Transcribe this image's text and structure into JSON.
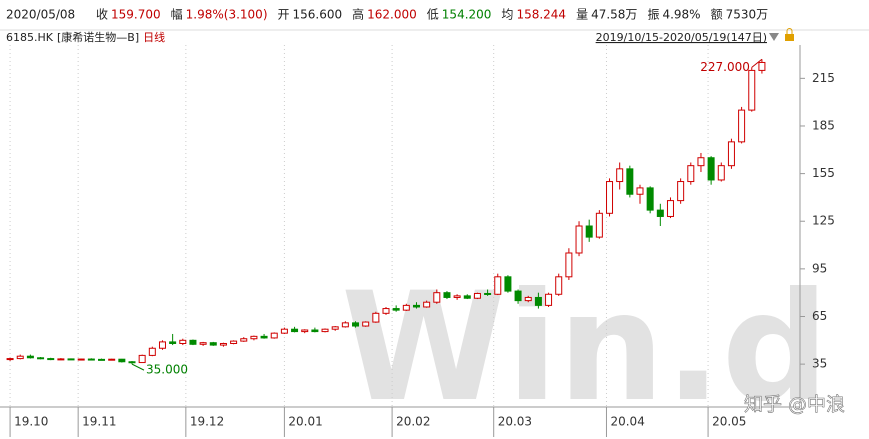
{
  "header": {
    "date": "2020/05/08",
    "items": [
      {
        "label": "收",
        "value": "159.700",
        "color": "#c00000"
      },
      {
        "label": "幅",
        "value": "1.98%(3.100)",
        "color": "#c00000"
      },
      {
        "label": "开",
        "value": "156.600",
        "color": "#222222"
      },
      {
        "label": "高",
        "value": "162.000",
        "color": "#c00000"
      },
      {
        "label": "低",
        "value": "154.200",
        "color": "#008000"
      },
      {
        "label": "均",
        "value": "158.244",
        "color": "#c00000"
      },
      {
        "label": "量",
        "value": "47.58万",
        "color": "#222222"
      },
      {
        "label": "振",
        "value": "4.98%",
        "color": "#222222"
      },
      {
        "label": "额",
        "value": "7530万",
        "color": "#222222"
      }
    ],
    "code": "6185.HK",
    "name": "[康希诺生物—B]",
    "period": "日线",
    "range": "2019/10/15-2020/05/19(147日)"
  },
  "chart_data": {
    "type": "candlestick",
    "up_color": "#d00000",
    "down_color": "#008a00",
    "ohlc": [
      [
        38,
        39,
        37,
        38.5
      ],
      [
        38.5,
        41,
        38,
        40
      ],
      [
        40,
        41,
        38.5,
        39
      ],
      [
        39,
        39.5,
        38,
        38.5
      ],
      [
        38.5,
        39,
        37.5,
        38
      ],
      [
        38,
        38.8,
        37.5,
        38.3
      ],
      [
        38.3,
        38.6,
        37.6,
        37.8
      ],
      [
        37.8,
        38.5,
        37.5,
        38.2
      ],
      [
        38.2,
        38.7,
        37.8,
        38
      ],
      [
        38,
        38.5,
        37.6,
        37.9
      ],
      [
        37.9,
        38.4,
        37.5,
        38.1
      ],
      [
        38.1,
        38.3,
        36,
        36.5
      ],
      [
        36.5,
        37,
        35,
        36
      ],
      [
        36,
        41,
        35.8,
        40.5
      ],
      [
        40.5,
        46,
        40,
        45
      ],
      [
        45,
        50,
        44,
        49
      ],
      [
        49,
        54,
        47,
        48
      ],
      [
        48,
        51,
        47,
        50
      ],
      [
        50,
        50.5,
        47,
        47.5
      ],
      [
        47.5,
        49,
        46.5,
        48.5
      ],
      [
        48.5,
        49,
        46.5,
        47
      ],
      [
        47,
        48.5,
        46,
        48
      ],
      [
        48,
        50,
        47.5,
        49.5
      ],
      [
        49.5,
        52,
        49,
        51
      ],
      [
        51,
        53,
        50,
        52.5
      ],
      [
        52.5,
        54,
        51,
        51.5
      ],
      [
        51.5,
        55,
        51,
        54.5
      ],
      [
        54.5,
        58,
        54,
        57
      ],
      [
        57,
        58.5,
        55,
        55.5
      ],
      [
        55.5,
        57,
        54.5,
        56.5
      ],
      [
        56.5,
        58,
        55,
        55.5
      ],
      [
        55.5,
        57.5,
        55,
        57
      ],
      [
        57,
        59,
        56,
        58.5
      ],
      [
        58.5,
        62,
        58,
        61
      ],
      [
        61,
        62,
        58,
        59
      ],
      [
        59,
        62,
        58.5,
        61.5
      ],
      [
        61.5,
        68,
        61,
        67
      ],
      [
        67,
        71,
        66,
        70
      ],
      [
        70,
        72,
        68,
        69
      ],
      [
        69,
        73,
        68.5,
        72
      ],
      [
        72,
        74,
        70,
        71
      ],
      [
        71,
        75,
        70.5,
        74
      ],
      [
        74,
        82,
        73,
        80
      ],
      [
        80,
        81,
        76,
        77
      ],
      [
        77,
        79,
        75.5,
        78
      ],
      [
        78,
        79,
        76,
        76.5
      ],
      [
        76.5,
        80,
        76,
        79.5
      ],
      [
        79.5,
        82,
        78,
        79
      ],
      [
        79,
        92,
        78.5,
        90
      ],
      [
        90,
        91,
        80,
        81
      ],
      [
        81,
        82,
        73,
        75
      ],
      [
        75,
        78,
        74,
        77
      ],
      [
        77,
        80,
        70,
        72
      ],
      [
        72,
        80,
        71,
        79
      ],
      [
        79,
        92,
        78,
        90
      ],
      [
        90,
        108,
        88,
        105
      ],
      [
        105,
        125,
        103,
        122
      ],
      [
        122,
        126,
        112,
        115
      ],
      [
        115,
        132,
        114,
        130
      ],
      [
        130,
        152,
        128,
        150
      ],
      [
        150,
        162,
        145,
        158
      ],
      [
        158,
        160,
        140,
        142
      ],
      [
        142,
        148,
        136,
        146
      ],
      [
        146,
        147,
        130,
        132
      ],
      [
        132,
        136,
        122,
        128
      ],
      [
        128,
        140,
        127,
        138
      ],
      [
        138,
        152,
        136,
        150
      ],
      [
        150,
        162,
        148,
        160
      ],
      [
        160,
        168,
        156,
        165
      ],
      [
        165,
        166,
        148,
        151
      ],
      [
        151,
        162,
        150,
        160
      ],
      [
        160,
        177,
        158,
        175
      ],
      [
        175,
        197,
        174,
        195
      ],
      [
        195,
        222,
        194,
        220
      ],
      [
        220,
        227,
        218,
        225
      ]
    ],
    "xlim": [
      -0.5,
      74.5
    ],
    "xticks": [
      {
        "value": 0,
        "label": "19.10"
      },
      {
        "value": 6.7,
        "label": "19.11"
      },
      {
        "value": 17.3,
        "label": "19.12"
      },
      {
        "value": 27,
        "label": "20.01"
      },
      {
        "value": 37.6,
        "label": "20.02"
      },
      {
        "value": 47.6,
        "label": "20.03"
      },
      {
        "value": 58.7,
        "label": "20.04"
      },
      {
        "value": 68.7,
        "label": "20.05"
      }
    ],
    "ylim": [
      8,
      236
    ],
    "yticks": [
      35,
      65,
      95,
      125,
      155,
      185,
      215
    ],
    "annotations": [
      {
        "text": "227.000",
        "value": 227,
        "index": 74,
        "color": "#c00000"
      },
      {
        "text": "35.000",
        "value": 35,
        "index": 12,
        "color": "#008000"
      }
    ]
  },
  "watermark": {
    "logo": "Win.d",
    "credit": "知乎 @中浪"
  }
}
